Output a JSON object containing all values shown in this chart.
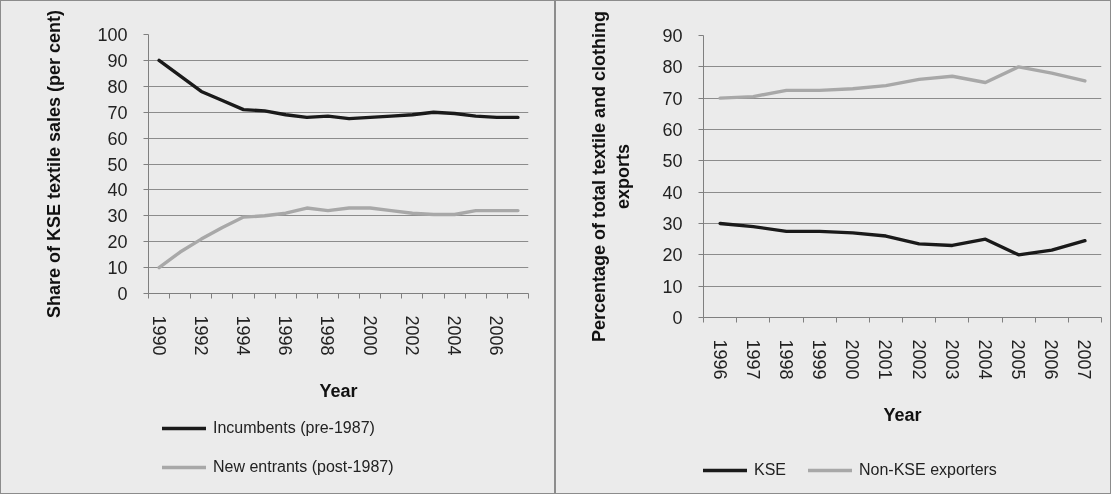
{
  "chart_data": [
    {
      "type": "line",
      "ylabel": "Share of KSE textile sales (per cent)",
      "xlabel": "Year",
      "categories": [
        "1990",
        null,
        "1992",
        null,
        "1994",
        null,
        "1996",
        null,
        "1998",
        null,
        "2000",
        null,
        "2002",
        null,
        "2004",
        null,
        "2006",
        null
      ],
      "series": [
        {
          "name": "Incumbents (pre-1987)",
          "color": "#1a1a1a",
          "values": [
            90,
            84,
            78,
            74.5,
            71,
            70.5,
            69,
            68,
            68.5,
            67.5,
            68,
            68.5,
            69,
            70,
            69.5,
            68.5,
            68,
            68
          ]
        },
        {
          "name": "New entrants (post-1987)",
          "color": "#a8a8a8",
          "values": [
            10,
            16,
            21,
            25.5,
            29.5,
            30,
            31,
            33,
            32,
            33,
            33,
            32,
            31,
            30.5,
            30.5,
            32,
            32,
            32
          ]
        }
      ],
      "ylim": [
        0,
        100
      ],
      "yticks": [
        0,
        10,
        20,
        30,
        40,
        50,
        60,
        70,
        80,
        90,
        100
      ],
      "grid": "y",
      "legend": "bottom"
    },
    {
      "type": "line",
      "ylabel": "Percentage of total textile and clothing exports",
      "xlabel": "Year",
      "categories": [
        "1996",
        "1997",
        "1998",
        "1999",
        "2000",
        "2001",
        "2002",
        "2003",
        "2004",
        "2005",
        "2006",
        "2007"
      ],
      "series": [
        {
          "name": "KSE",
          "color": "#1a1a1a",
          "values": [
            30,
            29,
            27.5,
            27.5,
            27,
            26,
            23.5,
            23,
            25,
            20,
            21.5,
            24.5
          ]
        },
        {
          "name": "Non-KSE exporters",
          "color": "#a8a8a8",
          "values": [
            70,
            70.5,
            72.5,
            72.5,
            73,
            74,
            76,
            77,
            75,
            80,
            78,
            75.5
          ]
        }
      ],
      "ylim": [
        0,
        90
      ],
      "yticks": [
        0,
        10,
        20,
        30,
        40,
        50,
        60,
        70,
        80,
        90
      ],
      "grid": "y",
      "legend": "bottom"
    }
  ]
}
